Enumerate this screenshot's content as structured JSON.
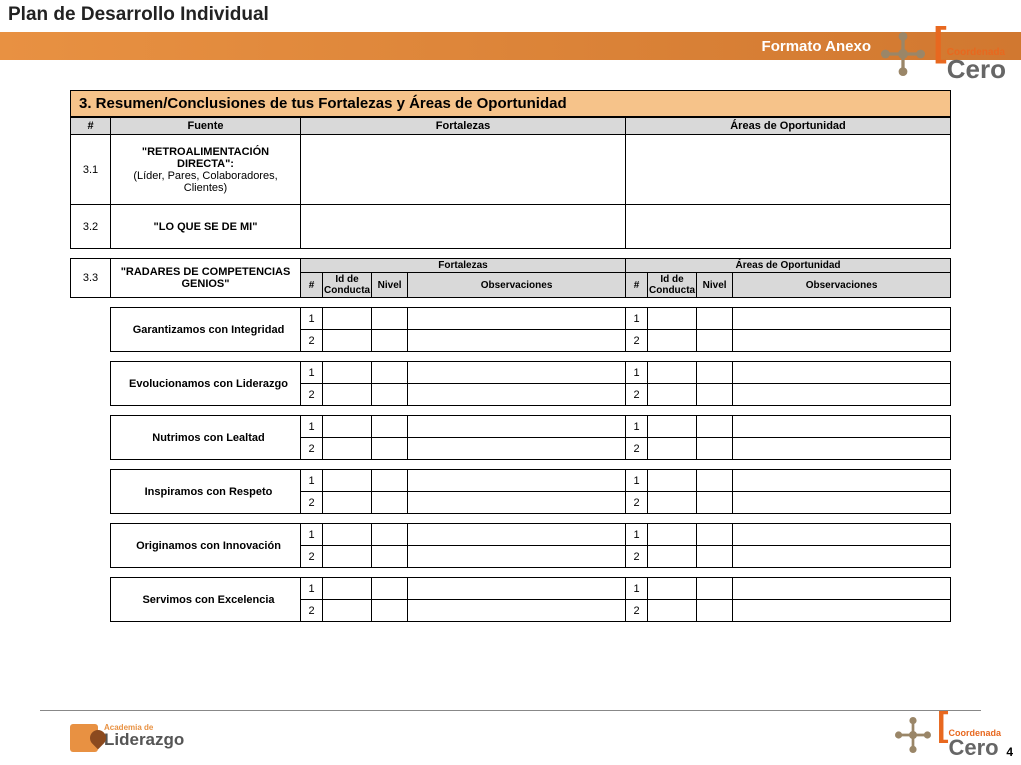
{
  "header": {
    "title": "Plan de Desarrollo Individual",
    "format_label": "Formato Anexo"
  },
  "section3": {
    "title": "3. Resumen/Conclusiones de tus Fortalezas y Áreas de Oportunidad",
    "columns": {
      "num": "#",
      "fuente": "Fuente",
      "fortalezas": "Fortalezas",
      "areas": "Áreas de Oportunidad"
    },
    "rows": [
      {
        "num": "3.1",
        "fuente": "\"RETROALIMENTACIÓN DIRECTA\":\n(Líder, Pares, Colaboradores, Clientes)"
      },
      {
        "num": "3.2",
        "fuente": "\"LO QUE SE DE MI\""
      }
    ],
    "row33": {
      "num": "3.3",
      "fuente": "\"RADARES DE COMPETENCIAS GENIOS\"",
      "fortalezas_label": "Fortalezas",
      "areas_label": "Áreas de Oportunidad",
      "sub_columns": {
        "num": "#",
        "id": "Id de Conducta",
        "nivel": "Nivel",
        "obs": "Observaciones"
      },
      "competencias": [
        "Garantizamos con Integridad",
        "Evolucionamos con Liderazgo",
        "Nutrimos con Lealtad",
        "Inspiramos con Respeto",
        "Originamos con Innovación",
        "Servimos con Excelencia"
      ],
      "row_nums": [
        "1",
        "2"
      ]
    }
  },
  "logos": {
    "liderazgo_small": "Academia de",
    "liderazgo": "Liderazgo",
    "cero_small": "Coordenada",
    "cero": "Cero"
  },
  "page_number": "4",
  "colors": {
    "orange_light": "#f6c38a",
    "orange_band": "#e89142",
    "orange_brand": "#e8681f",
    "grey_header": "#d9d9d9",
    "cross": "#9a8668"
  }
}
